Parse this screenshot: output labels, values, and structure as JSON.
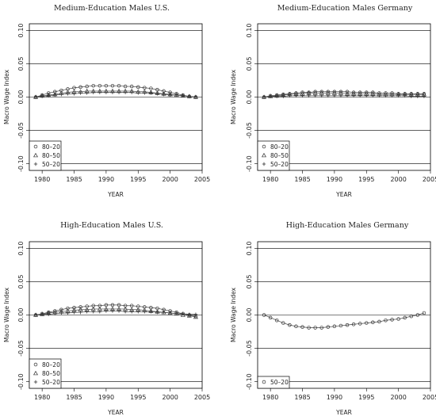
{
  "chart_data": [
    {
      "type": "scatter",
      "title": "Medium-Education Males U.S.",
      "xlabel": "YEAR",
      "ylabel": "Macro Wage Index",
      "xlim": [
        1978,
        2005
      ],
      "ylim": [
        -0.11,
        0.11
      ],
      "xticks": [
        "1980",
        "1985",
        "1990",
        "1995",
        "2000",
        "2005"
      ],
      "yticks": [
        "-0.10",
        "-0.05",
        "0.00",
        "0.05",
        "0.10"
      ],
      "grid": "horizontal",
      "legend": "bottom-left",
      "x": [
        1979,
        1980,
        1981,
        1982,
        1983,
        1984,
        1985,
        1986,
        1987,
        1988,
        1989,
        1990,
        1991,
        1992,
        1993,
        1994,
        1995,
        1996,
        1997,
        1998,
        1999,
        2000,
        2001,
        2002,
        2003,
        2004
      ],
      "series": [
        {
          "name": "80–20",
          "marker": "circle",
          "values": [
            0.0,
            0.003,
            0.006,
            0.008,
            0.01,
            0.012,
            0.014,
            0.015,
            0.016,
            0.017,
            0.017,
            0.017,
            0.017,
            0.017,
            0.016,
            0.016,
            0.015,
            0.014,
            0.013,
            0.011,
            0.009,
            0.007,
            0.005,
            0.003,
            0.001,
            0.0
          ]
        },
        {
          "name": "80–50",
          "marker": "triangle",
          "values": [
            0.0,
            0.002,
            0.003,
            0.004,
            0.006,
            0.007,
            0.008,
            0.008,
            0.009,
            0.009,
            0.009,
            0.009,
            0.009,
            0.009,
            0.009,
            0.009,
            0.008,
            0.008,
            0.007,
            0.006,
            0.005,
            0.004,
            0.003,
            0.002,
            0.001,
            0.0
          ]
        },
        {
          "name": "50–20",
          "marker": "plus",
          "values": [
            0.0,
            0.001,
            0.002,
            0.003,
            0.004,
            0.005,
            0.005,
            0.006,
            0.006,
            0.007,
            0.007,
            0.007,
            0.007,
            0.007,
            0.007,
            0.007,
            0.006,
            0.006,
            0.006,
            0.005,
            0.004,
            0.003,
            0.003,
            0.002,
            0.001,
            0.0
          ]
        }
      ]
    },
    {
      "type": "scatter",
      "title": "Medium-Education Males Germany",
      "xlabel": "YEAR",
      "ylabel": "Macro Wage Index",
      "xlim": [
        1978,
        2005
      ],
      "ylim": [
        -0.11,
        0.11
      ],
      "xticks": [
        "1980",
        "1985",
        "1990",
        "1995",
        "2000",
        "2005"
      ],
      "yticks": [
        "-0.10",
        "-0.05",
        "0.00",
        "0.05",
        "0.10"
      ],
      "grid": "horizontal",
      "legend": "bottom-left",
      "x": [
        1979,
        1980,
        1981,
        1982,
        1983,
        1984,
        1985,
        1986,
        1987,
        1988,
        1989,
        1990,
        1991,
        1992,
        1993,
        1994,
        1995,
        1996,
        1997,
        1998,
        1999,
        2000,
        2001,
        2002,
        2003,
        2004
      ],
      "series": [
        {
          "name": "80–20",
          "marker": "circle",
          "values": [
            0.0,
            0.002,
            0.003,
            0.004,
            0.005,
            0.006,
            0.007,
            0.007,
            0.008,
            0.008,
            0.008,
            0.008,
            0.008,
            0.008,
            0.007,
            0.007,
            0.007,
            0.007,
            0.006,
            0.006,
            0.006,
            0.005,
            0.005,
            0.005,
            0.005,
            0.005
          ]
        },
        {
          "name": "80–50",
          "marker": "triangle",
          "values": [
            0.0,
            0.001,
            0.002,
            0.003,
            0.004,
            0.005,
            0.005,
            0.006,
            0.006,
            0.006,
            0.006,
            0.006,
            0.006,
            0.005,
            0.005,
            0.005,
            0.005,
            0.005,
            0.004,
            0.004,
            0.004,
            0.004,
            0.004,
            0.004,
            0.004,
            0.004
          ]
        },
        {
          "name": "50–20",
          "marker": "plus",
          "values": [
            0.0,
            0.001,
            0.001,
            0.001,
            0.002,
            0.002,
            0.002,
            0.002,
            0.002,
            0.002,
            0.002,
            0.002,
            0.002,
            0.002,
            0.002,
            0.002,
            0.002,
            0.002,
            0.002,
            0.002,
            0.002,
            0.002,
            0.002,
            0.001,
            0.001,
            0.001
          ]
        }
      ]
    },
    {
      "type": "scatter",
      "title": "High-Education Males U.S.",
      "xlabel": "YEAR",
      "ylabel": "Macro Wage Index",
      "xlim": [
        1978,
        2005
      ],
      "ylim": [
        -0.11,
        0.11
      ],
      "xticks": [
        "1980",
        "1985",
        "1990",
        "1995",
        "2000",
        "2005"
      ],
      "yticks": [
        "-0.10",
        "-0.05",
        "0.00",
        "0.05",
        "0.10"
      ],
      "grid": "horizontal",
      "legend": "bottom-left",
      "x": [
        1979,
        1980,
        1981,
        1982,
        1983,
        1984,
        1985,
        1986,
        1987,
        1988,
        1989,
        1990,
        1991,
        1992,
        1993,
        1994,
        1995,
        1996,
        1997,
        1998,
        1999,
        2000,
        2001,
        2002,
        2003,
        2004
      ],
      "series": [
        {
          "name": "80–20",
          "marker": "circle",
          "values": [
            0.0,
            0.002,
            0.004,
            0.006,
            0.008,
            0.01,
            0.011,
            0.012,
            0.013,
            0.014,
            0.014,
            0.015,
            0.015,
            0.015,
            0.014,
            0.014,
            0.013,
            0.012,
            0.011,
            0.01,
            0.008,
            0.006,
            0.004,
            0.002,
            0.0,
            -0.002
          ]
        },
        {
          "name": "80–50",
          "marker": "triangle",
          "values": [
            0.0,
            0.001,
            0.003,
            0.004,
            0.005,
            0.006,
            0.007,
            0.008,
            0.008,
            0.009,
            0.009,
            0.009,
            0.009,
            0.009,
            0.009,
            0.008,
            0.008,
            0.007,
            0.006,
            0.005,
            0.004,
            0.003,
            0.002,
            0.0,
            -0.001,
            -0.003
          ]
        },
        {
          "name": "50–20",
          "marker": "plus",
          "values": [
            0.0,
            0.001,
            0.001,
            0.002,
            0.003,
            0.003,
            0.004,
            0.004,
            0.005,
            0.005,
            0.005,
            0.006,
            0.006,
            0.006,
            0.005,
            0.005,
            0.005,
            0.005,
            0.005,
            0.004,
            0.004,
            0.003,
            0.002,
            0.002,
            0.001,
            0.001
          ]
        }
      ]
    },
    {
      "type": "scatter",
      "title": "High-Education Males Germany",
      "xlabel": "YEAR",
      "ylabel": "Macro Wage Index",
      "xlim": [
        1978,
        2005
      ],
      "ylim": [
        -0.11,
        0.11
      ],
      "xticks": [
        "1980",
        "1985",
        "1990",
        "1995",
        "2000",
        "2005"
      ],
      "yticks": [
        "-0.10",
        "-0.05",
        "0.00",
        "0.05",
        "0.10"
      ],
      "grid": "horizontal",
      "legend": "bottom-left",
      "x": [
        1979,
        1980,
        1981,
        1982,
        1983,
        1984,
        1985,
        1986,
        1987,
        1988,
        1989,
        1990,
        1991,
        1992,
        1993,
        1994,
        1995,
        1996,
        1997,
        1998,
        1999,
        2000,
        2001,
        2002,
        2003,
        2004
      ],
      "series": [
        {
          "name": "50–20",
          "marker": "circle",
          "values": [
            0.0,
            -0.004,
            -0.008,
            -0.012,
            -0.015,
            -0.017,
            -0.018,
            -0.019,
            -0.019,
            -0.019,
            -0.018,
            -0.017,
            -0.016,
            -0.015,
            -0.014,
            -0.013,
            -0.012,
            -0.011,
            -0.01,
            -0.008,
            -0.007,
            -0.006,
            -0.004,
            -0.002,
            0.0,
            0.003
          ]
        }
      ]
    }
  ]
}
